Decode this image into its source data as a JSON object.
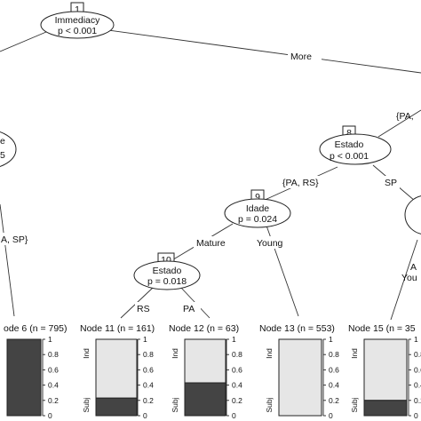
{
  "colors": {
    "ind": "#e6e6e6",
    "subj": "#444444",
    "background": "#ffffff"
  },
  "inner_nodes": [
    {
      "id": "n1",
      "num": "1",
      "var": "Immediacy",
      "p": "p < 0.001"
    },
    {
      "id": "nL",
      "num": "",
      "var": "e",
      "p": "5"
    },
    {
      "id": "n8",
      "num": "8",
      "var": "Estado",
      "p": "p < 0.001"
    },
    {
      "id": "n9",
      "num": "9",
      "var": "Idade",
      "p": "p = 0.024"
    },
    {
      "id": "n10",
      "num": "10",
      "var": "Estado",
      "p": "p = 0.018"
    },
    {
      "id": "nR",
      "num": "",
      "var": "",
      "p": ""
    }
  ],
  "edge_labels": {
    "more": "More",
    "pa_sp_left": "A, SP}",
    "pa_top_right": "{PA,",
    "pa_rs": "{PA, RS}",
    "sp": "SP",
    "mature": "Mature",
    "young": "Young",
    "rs": "RS",
    "pa": "PA",
    "a_right": "A",
    "you_right": "You"
  },
  "terminal_nodes": [
    {
      "id": "t6",
      "title": "ode 6 (n = 795)",
      "subj_share": 1.0
    },
    {
      "id": "t11",
      "title": "Node 11 (n = 161)",
      "subj_share": 0.23
    },
    {
      "id": "t12",
      "title": "Node 12 (n = 63)",
      "subj_share": 0.43
    },
    {
      "id": "t13",
      "title": "Node 13 (n = 553)",
      "subj_share": 0.0
    },
    {
      "id": "t15",
      "title": "Node 15 (n = 35",
      "subj_share": 0.2
    }
  ],
  "bar_axis": {
    "ticks": [
      "1",
      "0.8",
      "0.6",
      "0.4",
      "0.2",
      "0"
    ],
    "ind_label": "Ind",
    "subj_label": "Subj"
  }
}
